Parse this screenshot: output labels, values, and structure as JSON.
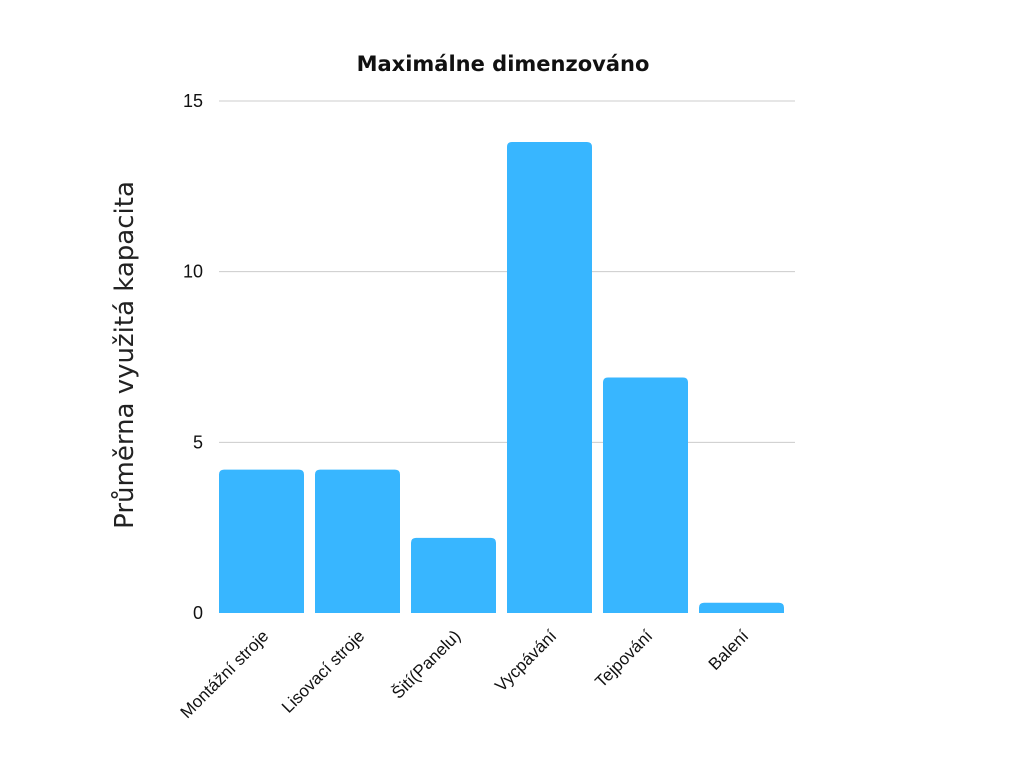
{
  "chart_data": {
    "type": "bar",
    "title": "Maximálne dimenzováno",
    "xlabel": "",
    "ylabel": "Průměrna využitá kapacita",
    "categories": [
      "Montážní stroje",
      "Lisovací stroje",
      "Šití(Panelu)",
      "Vycpávání",
      "Tejpování",
      "Balení"
    ],
    "values": [
      4.2,
      4.2,
      2.2,
      13.8,
      6.9,
      0.3
    ],
    "ylim": [
      0,
      15
    ],
    "yticks": [
      0,
      5,
      10,
      15
    ],
    "grid": true,
    "legend": "none",
    "colors": {
      "bar": "#38b6ff",
      "grid": "#cccccc",
      "text": "#111111"
    }
  }
}
